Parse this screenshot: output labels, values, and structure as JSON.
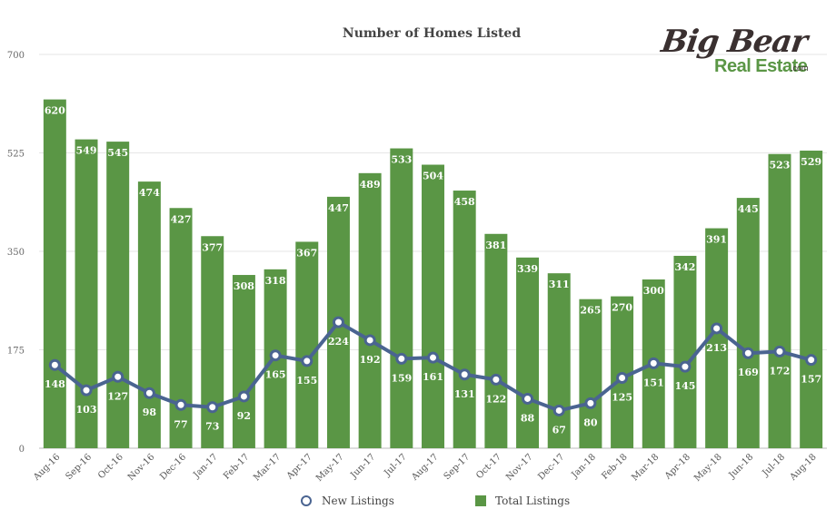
{
  "chart_data": {
    "type": "bar",
    "title": "Number of Homes Listed",
    "categories": [
      "Aug-16",
      "Sep-16",
      "Oct-16",
      "Nov-16",
      "Dec-16",
      "Jan-17",
      "Feb-17",
      "Mar-17",
      "Apr-17",
      "May-17",
      "Jun-17",
      "Jul-17",
      "Aug-17",
      "Sep-17",
      "Oct-17",
      "Nov-17",
      "Dec-17",
      "Jan-18",
      "Feb-18",
      "Mar-18",
      "Apr-18",
      "May-18",
      "Jun-18",
      "Jul-18",
      "Aug-18"
    ],
    "series": [
      {
        "name": "Total Listings",
        "kind": "bar",
        "color": "#5a9645",
        "values": [
          620,
          549,
          545,
          474,
          427,
          377,
          308,
          318,
          367,
          447,
          489,
          533,
          504,
          458,
          381,
          339,
          311,
          265,
          270,
          300,
          342,
          391,
          445,
          523,
          529
        ]
      },
      {
        "name": "New Listings",
        "kind": "line",
        "color": "#4a6491",
        "values": [
          148,
          103,
          127,
          98,
          77,
          73,
          92,
          165,
          155,
          224,
          192,
          159,
          161,
          131,
          122,
          88,
          67,
          80,
          125,
          151,
          145,
          213,
          169,
          172,
          157
        ]
      }
    ],
    "yticks": [
      "0",
      "175",
      "350",
      "525",
      "700"
    ],
    "ylim": [
      0,
      700
    ],
    "grid": true,
    "legend_position": "bottom"
  },
  "logo": {
    "line1": "Big Bear",
    "line2": "Real Estate",
    "suffix": ".com"
  }
}
